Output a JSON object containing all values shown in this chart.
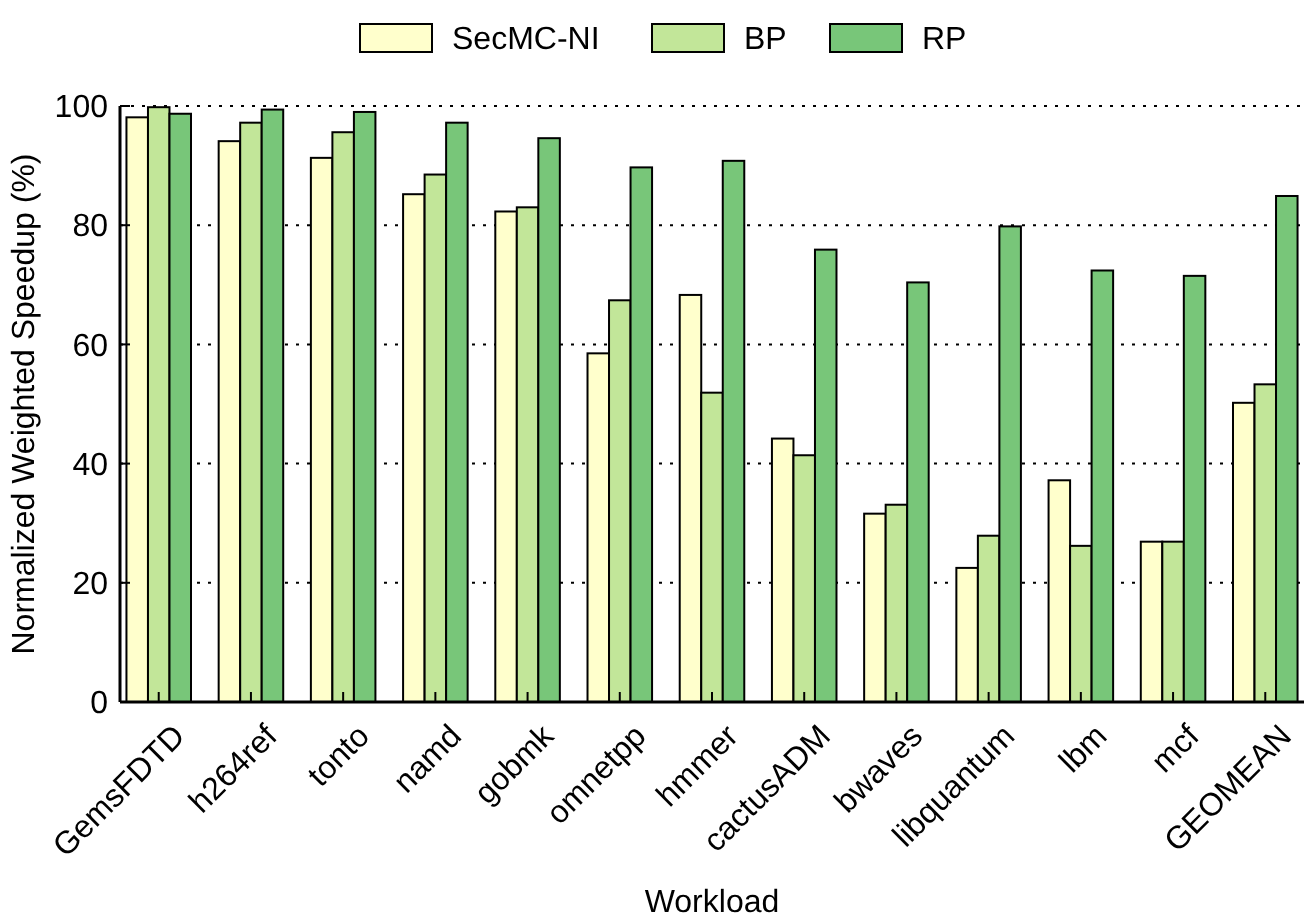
{
  "chart_data": {
    "type": "bar",
    "xlabel": "Workload",
    "ylabel": "Normalized Weighted Speedup (%)",
    "categories": [
      "GemsFDTD",
      "h264ref",
      "tonto",
      "namd",
      "gobmk",
      "omnetpp",
      "hmmer",
      "cactusADM",
      "bwaves",
      "libquantum",
      "lbm",
      "mcf",
      "GEOMEAN"
    ],
    "series": [
      {
        "name": "SecMC-NI",
        "color": "#ffffcc",
        "values": [
          98.1,
          94.1,
          91.3,
          85.2,
          82.3,
          58.5,
          68.3,
          44.2,
          31.6,
          22.5,
          37.2,
          26.9,
          50.2
        ]
      },
      {
        "name": "BP",
        "color": "#c2e699",
        "values": [
          99.8,
          97.2,
          95.6,
          88.5,
          83.0,
          67.4,
          51.9,
          41.4,
          33.1,
          27.9,
          26.2,
          26.9,
          53.3
        ]
      },
      {
        "name": "RP",
        "color": "#78c679",
        "values": [
          98.7,
          99.4,
          99.0,
          97.2,
          94.6,
          89.7,
          90.8,
          75.9,
          70.4,
          79.8,
          72.4,
          71.5,
          84.9
        ]
      }
    ],
    "ylim": [
      0,
      100
    ],
    "yticks": [
      0,
      20,
      40,
      60,
      80,
      100
    ],
    "grid": "y",
    "legend": "top"
  }
}
